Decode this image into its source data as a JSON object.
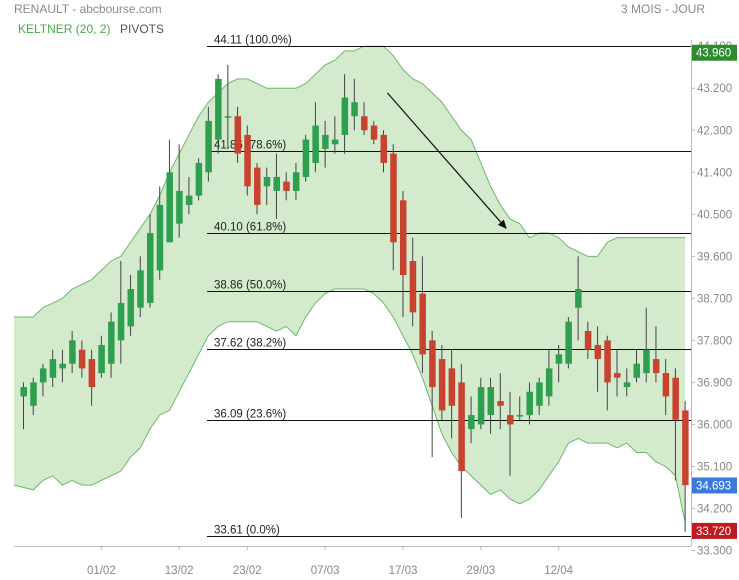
{
  "header": {
    "source": "RENAULT - abcbourse.com",
    "period": "3 MOIS - JOUR",
    "indicator_keltner": "KELTNER (20, 2)",
    "indicator_pivots": "PIVOTS"
  },
  "colors": {
    "up": "#2e9e4f",
    "down": "#c8432f",
    "band_fill": "#cfe8c8",
    "band_line": "#6db86d",
    "tag_high": "#2e8b2e",
    "tag_current": "#3a7ae0",
    "tag_low": "#c0191e"
  },
  "chart_data": {
    "type": "candlestick",
    "y_range": [
      33.3,
      44.1
    ],
    "y_ticks": [
      "44.100",
      "43.200",
      "42.300",
      "41.400",
      "40.500",
      "39.600",
      "38.700",
      "37.800",
      "36.900",
      "36.000",
      "35.100",
      "34.200",
      "33.300"
    ],
    "x_ticks": [
      {
        "label": "01/02",
        "index": 8
      },
      {
        "label": "13/02",
        "index": 16
      },
      {
        "label": "23/02",
        "index": 23
      },
      {
        "label": "07/03",
        "index": 31
      },
      {
        "label": "17/03",
        "index": 39
      },
      {
        "label": "29/03",
        "index": 47
      },
      {
        "label": "12/04",
        "index": 55
      }
    ],
    "fibonacci": [
      {
        "label": "44.11",
        "pct": "(100.0%)",
        "value": 44.11
      },
      {
        "label": "41.86",
        "pct": "(78.6%)",
        "value": 41.86
      },
      {
        "label": "40.10",
        "pct": "(61.8%)",
        "value": 40.1
      },
      {
        "label": "38.86",
        "pct": "(50.0%)",
        "value": 38.86
      },
      {
        "label": "37.62",
        "pct": "(38.2%)",
        "value": 37.62
      },
      {
        "label": "36.09",
        "pct": "(23.6%)",
        "value": 36.09
      },
      {
        "label": "33.61",
        "pct": "(0.0%)",
        "value": 33.61
      }
    ],
    "price_tags": [
      {
        "label": "43.960",
        "value": 43.96,
        "kind": "high"
      },
      {
        "label": "34.693",
        "value": 34.693,
        "kind": "current"
      },
      {
        "label": "33.720",
        "value": 33.72,
        "kind": "low"
      }
    ],
    "arrow": {
      "from": [
        37.4,
        43.1
      ],
      "to": [
        49.6,
        40.2
      ]
    },
    "candles": [
      {
        "o": 36.6,
        "h": 36.9,
        "l": 35.9,
        "c": 36.8
      },
      {
        "o": 36.4,
        "h": 37.0,
        "l": 36.2,
        "c": 36.9
      },
      {
        "o": 36.9,
        "h": 37.3,
        "l": 36.6,
        "c": 37.2
      },
      {
        "o": 37.0,
        "h": 37.6,
        "l": 36.8,
        "c": 37.4
      },
      {
        "o": 37.2,
        "h": 37.6,
        "l": 36.9,
        "c": 37.3
      },
      {
        "o": 37.3,
        "h": 38.0,
        "l": 37.1,
        "c": 37.8
      },
      {
        "o": 37.6,
        "h": 37.8,
        "l": 37.0,
        "c": 37.2
      },
      {
        "o": 37.4,
        "h": 37.6,
        "l": 36.4,
        "c": 36.8
      },
      {
        "o": 37.1,
        "h": 37.9,
        "l": 37.0,
        "c": 37.7
      },
      {
        "o": 37.3,
        "h": 38.4,
        "l": 37.0,
        "c": 38.2
      },
      {
        "o": 37.8,
        "h": 39.5,
        "l": 37.3,
        "c": 38.6
      },
      {
        "o": 38.1,
        "h": 39.2,
        "l": 37.9,
        "c": 38.9
      },
      {
        "o": 38.5,
        "h": 39.6,
        "l": 38.3,
        "c": 39.3
      },
      {
        "o": 38.6,
        "h": 40.5,
        "l": 38.5,
        "c": 40.1
      },
      {
        "o": 39.3,
        "h": 41.1,
        "l": 39.1,
        "c": 40.7
      },
      {
        "o": 39.9,
        "h": 42.1,
        "l": 39.9,
        "c": 41.4
      },
      {
        "o": 40.3,
        "h": 42.0,
        "l": 40.0,
        "c": 41.0
      },
      {
        "o": 40.7,
        "h": 41.3,
        "l": 40.5,
        "c": 40.9
      },
      {
        "o": 40.9,
        "h": 41.7,
        "l": 40.8,
        "c": 41.6
      },
      {
        "o": 41.4,
        "h": 42.8,
        "l": 41.2,
        "c": 42.5
      },
      {
        "o": 42.1,
        "h": 43.5,
        "l": 41.8,
        "c": 43.4
      },
      {
        "o": 42.6,
        "h": 43.7,
        "l": 41.9,
        "c": 42.6
      },
      {
        "o": 42.6,
        "h": 42.8,
        "l": 41.6,
        "c": 41.8
      },
      {
        "o": 42.2,
        "h": 42.4,
        "l": 40.9,
        "c": 41.1
      },
      {
        "o": 41.5,
        "h": 41.6,
        "l": 40.5,
        "c": 40.7
      },
      {
        "o": 41.1,
        "h": 41.5,
        "l": 40.7,
        "c": 41.3
      },
      {
        "o": 41.0,
        "h": 41.8,
        "l": 40.4,
        "c": 41.3
      },
      {
        "o": 41.2,
        "h": 41.4,
        "l": 40.8,
        "c": 41.0
      },
      {
        "o": 41.0,
        "h": 41.6,
        "l": 40.8,
        "c": 41.4
      },
      {
        "o": 41.3,
        "h": 42.2,
        "l": 41.2,
        "c": 42.1
      },
      {
        "o": 41.6,
        "h": 42.9,
        "l": 41.4,
        "c": 42.4
      },
      {
        "o": 41.9,
        "h": 42.5,
        "l": 41.5,
        "c": 42.2
      },
      {
        "o": 42.0,
        "h": 42.6,
        "l": 41.8,
        "c": 42.1
      },
      {
        "o": 42.2,
        "h": 43.5,
        "l": 41.8,
        "c": 43.0
      },
      {
        "o": 42.6,
        "h": 43.4,
        "l": 42.3,
        "c": 42.9
      },
      {
        "o": 42.6,
        "h": 42.9,
        "l": 42.2,
        "c": 42.3
      },
      {
        "o": 42.4,
        "h": 42.5,
        "l": 42.0,
        "c": 42.1
      },
      {
        "o": 42.2,
        "h": 42.3,
        "l": 41.4,
        "c": 41.6
      },
      {
        "o": 41.8,
        "h": 42.0,
        "l": 39.3,
        "c": 39.9
      },
      {
        "o": 40.8,
        "h": 41.0,
        "l": 38.3,
        "c": 39.2
      },
      {
        "o": 39.5,
        "h": 40.0,
        "l": 38.1,
        "c": 38.4
      },
      {
        "o": 38.8,
        "h": 39.6,
        "l": 37.1,
        "c": 37.5
      },
      {
        "o": 37.8,
        "h": 38.0,
        "l": 35.3,
        "c": 36.8
      },
      {
        "o": 37.4,
        "h": 37.7,
        "l": 36.1,
        "c": 36.3
      },
      {
        "o": 37.2,
        "h": 37.6,
        "l": 35.7,
        "c": 36.4
      },
      {
        "o": 36.9,
        "h": 37.3,
        "l": 34.0,
        "c": 35.0
      },
      {
        "o": 35.9,
        "h": 36.6,
        "l": 35.6,
        "c": 36.2
      },
      {
        "o": 36.0,
        "h": 37.0,
        "l": 35.9,
        "c": 36.8
      },
      {
        "o": 36.2,
        "h": 37.0,
        "l": 35.8,
        "c": 36.8
      },
      {
        "o": 36.5,
        "h": 37.1,
        "l": 35.9,
        "c": 36.4
      },
      {
        "o": 36.2,
        "h": 36.7,
        "l": 34.9,
        "c": 36.0
      },
      {
        "o": 36.2,
        "h": 36.6,
        "l": 36.1,
        "c": 36.2
      },
      {
        "o": 36.2,
        "h": 36.9,
        "l": 36.0,
        "c": 36.7
      },
      {
        "o": 36.4,
        "h": 37.0,
        "l": 36.2,
        "c": 36.9
      },
      {
        "o": 36.6,
        "h": 37.6,
        "l": 36.4,
        "c": 37.2
      },
      {
        "o": 37.3,
        "h": 37.7,
        "l": 36.9,
        "c": 37.5
      },
      {
        "o": 37.3,
        "h": 38.3,
        "l": 37.2,
        "c": 38.2
      },
      {
        "o": 38.5,
        "h": 39.6,
        "l": 37.8,
        "c": 38.9
      },
      {
        "o": 38.0,
        "h": 38.2,
        "l": 37.4,
        "c": 37.6
      },
      {
        "o": 37.7,
        "h": 38.1,
        "l": 36.7,
        "c": 37.4
      },
      {
        "o": 37.8,
        "h": 37.9,
        "l": 36.3,
        "c": 36.9
      },
      {
        "o": 37.1,
        "h": 37.6,
        "l": 36.6,
        "c": 37.0
      },
      {
        "o": 36.8,
        "h": 37.2,
        "l": 36.6,
        "c": 36.9
      },
      {
        "o": 37.0,
        "h": 37.6,
        "l": 36.9,
        "c": 37.3
      },
      {
        "o": 37.1,
        "h": 38.5,
        "l": 36.9,
        "c": 37.6
      },
      {
        "o": 37.4,
        "h": 38.1,
        "l": 36.9,
        "c": 37.1
      },
      {
        "o": 37.1,
        "h": 37.4,
        "l": 36.2,
        "c": 36.6
      },
      {
        "o": 37.0,
        "h": 37.2,
        "l": 34.8,
        "c": 36.1
      },
      {
        "o": 36.3,
        "h": 36.5,
        "l": 33.7,
        "c": 34.7
      }
    ],
    "keltner_upper": [
      38.3,
      38.3,
      38.5,
      38.6,
      38.7,
      38.9,
      39.0,
      39.1,
      39.3,
      39.5,
      39.6,
      39.9,
      40.2,
      40.5,
      40.9,
      41.4,
      41.8,
      42.2,
      42.6,
      42.9,
      43.1,
      43.3,
      43.4,
      43.4,
      43.3,
      43.2,
      43.2,
      43.2,
      43.2,
      43.3,
      43.5,
      43.7,
      43.8,
      44.0,
      44.0,
      44.1,
      44.1,
      44.1,
      43.9,
      43.6,
      43.4,
      43.3,
      43.1,
      42.9,
      42.6,
      42.3,
      42.1,
      41.6,
      41.1,
      40.7,
      40.4,
      40.3,
      40.0,
      40.1,
      40.1,
      40.0,
      39.8,
      39.7,
      39.6,
      39.6,
      39.9,
      40.0,
      40.0,
      40.0,
      40.0,
      40.0,
      40.0,
      40.0,
      40.0
    ],
    "keltner_lower": [
      34.7,
      34.6,
      34.8,
      34.9,
      34.7,
      34.8,
      34.7,
      34.7,
      34.8,
      34.9,
      35.0,
      35.3,
      35.5,
      35.9,
      36.2,
      36.3,
      36.7,
      37.1,
      37.5,
      37.9,
      38.1,
      38.2,
      38.2,
      38.2,
      38.2,
      38.1,
      38.0,
      38.1,
      37.9,
      38.3,
      38.6,
      38.8,
      38.9,
      38.9,
      38.9,
      38.9,
      38.8,
      38.6,
      38.3,
      37.9,
      37.5,
      37.0,
      36.4,
      35.8,
      35.4,
      35.1,
      34.9,
      34.7,
      34.5,
      34.6,
      34.4,
      34.3,
      34.4,
      34.6,
      34.9,
      35.2,
      35.6,
      35.7,
      35.6,
      35.6,
      35.6,
      35.5,
      35.6,
      35.4,
      35.4,
      35.2,
      35.1,
      34.9,
      33.9
    ]
  }
}
